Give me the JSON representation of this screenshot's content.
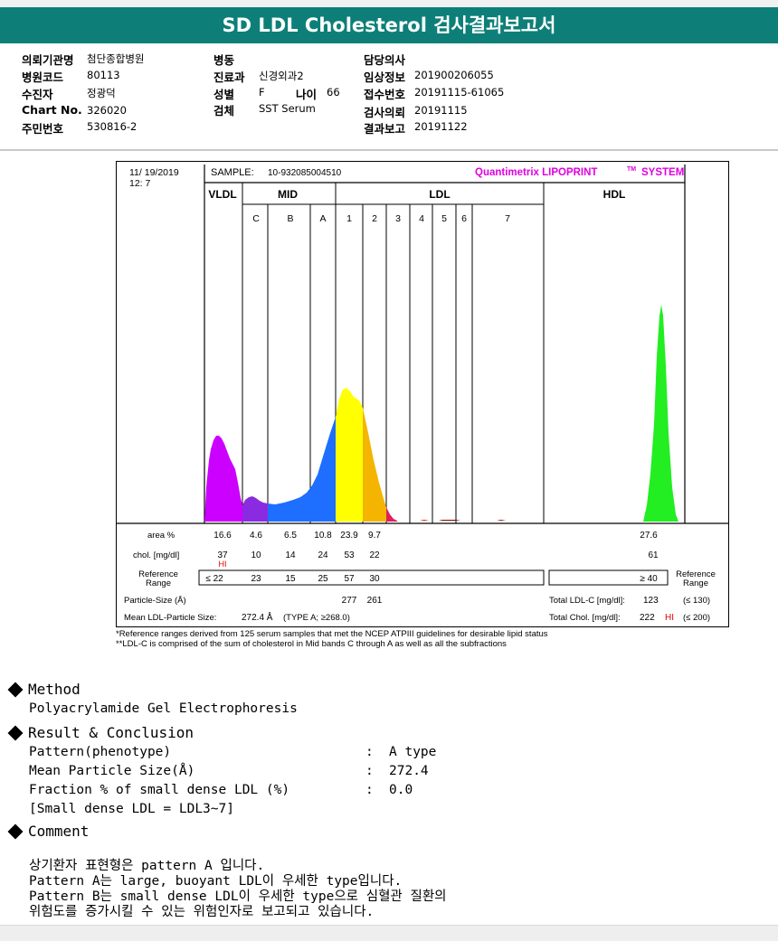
{
  "title": "SD LDL Cholesterol 검사결과보고서",
  "info": {
    "col1": [
      {
        "label": "의뢰기관명",
        "value": "첨단종합병원"
      },
      {
        "label": "병원코드",
        "value": "80113"
      },
      {
        "label": "수진자",
        "value": "정광덕"
      },
      {
        "label": "Chart No.",
        "value": "326020"
      },
      {
        "label": "주민번호",
        "value": "530816-2"
      }
    ],
    "col2": [
      {
        "label": "병동",
        "value": ""
      },
      {
        "label": "진료과",
        "value": "신경외과2"
      },
      {
        "label": "성별",
        "value": "F"
      },
      {
        "label": "검체",
        "value": "SST Serum"
      }
    ],
    "age_label": "나이",
    "age_value": "66",
    "col3": [
      {
        "label": "담당의사",
        "value": ""
      },
      {
        "label": "임상정보",
        "value": "201900206055"
      },
      {
        "label": "접수번호",
        "value": "20191115-61065"
      },
      {
        "label": "검사의뢰",
        "value": "20191115"
      },
      {
        "label": "결과보고",
        "value": "20191122"
      }
    ]
  },
  "report": {
    "date": "11/ 19/2019",
    "time": "12: 7",
    "sample_label": "SAMPLE:",
    "sample_value": "10-932085004510",
    "brand": "Quantimetrix LIPOPRINT",
    "brand_tm": "TM",
    "brand_suffix": "SYSTEM",
    "groups": [
      "VLDL",
      "MID",
      "LDL",
      "HDL"
    ],
    "bands": [
      "C",
      "B",
      "A",
      "1",
      "2",
      "3",
      "4",
      "5",
      "6",
      "7"
    ],
    "rows": {
      "area_label": "area %",
      "chol_label": "chol. [mg/dl]",
      "ref_label_1": "Reference",
      "ref_label_2": "Range",
      "particle_label": "Particle-Size (Å)",
      "mean_label": "Mean LDL-Particle Size:",
      "mean_value": "272.4 Å",
      "mean_type": "(TYPE A; ≥268.0)"
    },
    "area_values": [
      "16.6",
      "4.6",
      "6.5",
      "10.8",
      "23.9",
      "9.7"
    ],
    "hdl_area": "27.6",
    "chol_values": [
      "37",
      "10",
      "14",
      "24",
      "53",
      "22"
    ],
    "chol_flag": "HI",
    "hdl_chol": "61",
    "ref_values": [
      "≤ 22",
      "23",
      "15",
      "25",
      "57",
      "30"
    ],
    "hdl_ref": "≥ 40",
    "particle_values": [
      "277",
      "261"
    ],
    "total_ldl_label": "Total LDL-C [mg/dl]:",
    "total_ldl_value": "123",
    "total_ldl_ref": "(≤ 130)",
    "total_chol_label": "Total Chol. [mg/dl]:",
    "total_chol_value": "222",
    "total_chol_flag": "HI",
    "total_chol_ref": "(≤ 200)",
    "colors": {
      "vldl": "#cc00ff",
      "midc": "#8a2be2",
      "midb": "#1e6fff",
      "mida": "#0d5bff",
      "ldl1": "#ffff00",
      "ldl2": "#f5b400",
      "ldl3": "#e0205a",
      "hdl": "#22ee22",
      "brand": "#e000e0",
      "flag": "#e00000"
    }
  },
  "footnotes": [
    "*Reference ranges derived from 125 serum samples that met the NCEP ATPIII guidelines for desirable lipid status",
    "**LDL-C is comprised of the sum of cholesterol in Mid bands C through A as well as all the subfractions"
  ],
  "method": {
    "heading": "Method",
    "text": "Polyacrylamide Gel Electrophoresis"
  },
  "result": {
    "heading": "Result & Conclusion",
    "items": [
      {
        "key": "Pattern(phenotype)",
        "value": "A type"
      },
      {
        "key": "Mean Particle Size(Å)",
        "value": "272.4"
      },
      {
        "key": "Fraction % of small dense LDL (%)",
        "value": "0.0"
      }
    ],
    "note": "[Small dense LDL = LDL3~7]"
  },
  "comment": {
    "heading": "Comment",
    "lines": [
      "상기환자 표현형은 pattern A 입니다.",
      "Pattern A는 large, buoyant LDL이 우세한 type입니다.",
      "Pattern B는 small dense LDL이 우세한 type으로 심혈관 질환의",
      "위험도를 증가시킬 수 있는 위험인자로 보고되고 있습니다."
    ]
  },
  "chart_data": {
    "type": "area",
    "title": "",
    "xlabel": "",
    "ylabel": "",
    "series": [
      {
        "name": "VLDL",
        "x": [
          0,
          2,
          4,
          6,
          8,
          10,
          12,
          14,
          16,
          18,
          20,
          22,
          24,
          26,
          28,
          30,
          32,
          34,
          36,
          38,
          40,
          42,
          44,
          46
        ],
        "y": [
          2,
          18,
          42,
          60,
          72,
          78,
          78,
          74,
          70,
          70,
          71,
          68,
          60,
          52,
          40,
          28,
          18,
          10,
          6,
          4,
          3,
          3,
          3,
          3
        ]
      }
    ],
    "grid": false,
    "legend": "none"
  }
}
